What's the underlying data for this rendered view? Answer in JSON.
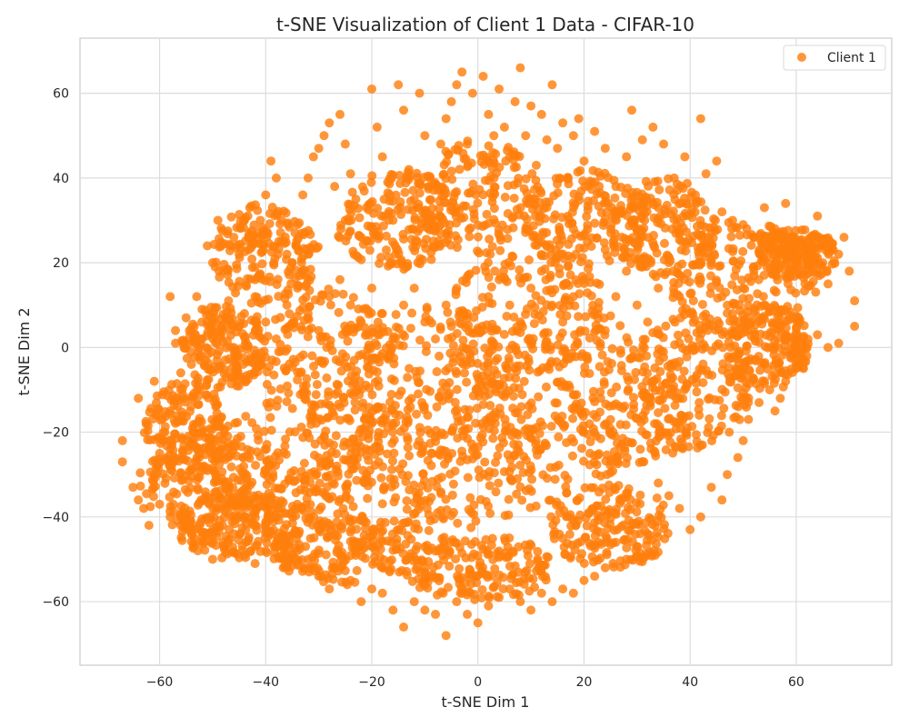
{
  "chart_data": {
    "type": "scatter",
    "title": "t-SNE Visualization of Client 1 Data - CIFAR-10",
    "xlabel": "t-SNE Dim 1",
    "ylabel": "t-SNE Dim 2",
    "xlim": [
      -75,
      78
    ],
    "ylim": [
      -75,
      73
    ],
    "xticks": [
      -60,
      -40,
      -20,
      0,
      20,
      40,
      60
    ],
    "yticks": [
      -60,
      -40,
      -20,
      0,
      20,
      40,
      60
    ],
    "grid": true,
    "legend_position": "top-right",
    "series": [
      {
        "name": "Client 1",
        "color": "#ff7f0e",
        "points": [
          [
            -67,
            -22
          ],
          [
            -67,
            -27
          ],
          [
            -65,
            -33
          ],
          [
            -64,
            -36
          ],
          [
            -63,
            -38
          ],
          [
            -62,
            -42
          ],
          [
            -64,
            -12
          ],
          [
            -61,
            -8
          ],
          [
            -58,
            12
          ],
          [
            -57,
            4
          ],
          [
            -57,
            1
          ],
          [
            -56,
            -6
          ],
          [
            -55,
            7
          ],
          [
            -53,
            12
          ],
          [
            -52,
            9
          ],
          [
            -51,
            24
          ],
          [
            -50,
            20
          ],
          [
            -49,
            30
          ],
          [
            -48,
            18
          ],
          [
            -47,
            11
          ],
          [
            -46,
            26
          ],
          [
            -45,
            22
          ],
          [
            -44,
            30
          ],
          [
            -43,
            33
          ],
          [
            -42,
            16
          ],
          [
            -41,
            30
          ],
          [
            -40,
            36
          ],
          [
            -39,
            44
          ],
          [
            -38,
            40
          ],
          [
            -37,
            30
          ],
          [
            -36,
            22
          ],
          [
            -35,
            20
          ],
          [
            -34,
            29
          ],
          [
            -33,
            36
          ],
          [
            -32,
            40
          ],
          [
            -31,
            45
          ],
          [
            -30,
            47
          ],
          [
            -29,
            50
          ],
          [
            -28,
            53
          ],
          [
            -27,
            38
          ],
          [
            -26,
            55
          ],
          [
            -25,
            48
          ],
          [
            -24,
            41
          ],
          [
            -23,
            35
          ],
          [
            -22,
            26
          ],
          [
            -21,
            33
          ],
          [
            -20,
            61
          ],
          [
            -19,
            52
          ],
          [
            -18,
            45
          ],
          [
            -17,
            39
          ],
          [
            -16,
            30
          ],
          [
            -15,
            62
          ],
          [
            -14,
            56
          ],
          [
            -13,
            42
          ],
          [
            -12,
            35
          ],
          [
            -11,
            60
          ],
          [
            -10,
            50
          ],
          [
            -9,
            40
          ],
          [
            -8,
            30
          ],
          [
            -7,
            48
          ],
          [
            -6,
            54
          ],
          [
            -5,
            58
          ],
          [
            -4,
            62
          ],
          [
            -3,
            65
          ],
          [
            -2,
            48
          ],
          [
            -1,
            60
          ],
          [
            1,
            64
          ],
          [
            2,
            55
          ],
          [
            3,
            50
          ],
          [
            4,
            61
          ],
          [
            5,
            52
          ],
          [
            6,
            45
          ],
          [
            7,
            58
          ],
          [
            8,
            66
          ],
          [
            9,
            50
          ],
          [
            10,
            57
          ],
          [
            11,
            43
          ],
          [
            12,
            55
          ],
          [
            13,
            49
          ],
          [
            14,
            62
          ],
          [
            15,
            47
          ],
          [
            16,
            53
          ],
          [
            17,
            40
          ],
          [
            18,
            50
          ],
          [
            19,
            54
          ],
          [
            20,
            44
          ],
          [
            22,
            51
          ],
          [
            24,
            47
          ],
          [
            26,
            38
          ],
          [
            28,
            45
          ],
          [
            29,
            56
          ],
          [
            31,
            49
          ],
          [
            33,
            52
          ],
          [
            35,
            48
          ],
          [
            37,
            40
          ],
          [
            39,
            45
          ],
          [
            41,
            36
          ],
          [
            42,
            54
          ],
          [
            43,
            41
          ],
          [
            44,
            27
          ],
          [
            45,
            44
          ],
          [
            46,
            32
          ],
          [
            48,
            30
          ],
          [
            50,
            29
          ],
          [
            52,
            26
          ],
          [
            54,
            33
          ],
          [
            56,
            28
          ],
          [
            57,
            22
          ],
          [
            58,
            34
          ],
          [
            60,
            25
          ],
          [
            62,
            23
          ],
          [
            64,
            31
          ],
          [
            65,
            20
          ],
          [
            66,
            15
          ],
          [
            67,
            23
          ],
          [
            68,
            22
          ],
          [
            69,
            26
          ],
          [
            70,
            18
          ],
          [
            71,
            11
          ],
          [
            71,
            5
          ],
          [
            68,
            1
          ],
          [
            66,
            0
          ],
          [
            64,
            3
          ],
          [
            62,
            -2
          ],
          [
            60,
            -5
          ],
          [
            58,
            -8
          ],
          [
            57,
            -12
          ],
          [
            56,
            -15
          ],
          [
            55,
            -10
          ],
          [
            53,
            -13
          ],
          [
            51,
            -17
          ],
          [
            50,
            -22
          ],
          [
            49,
            -26
          ],
          [
            47,
            -30
          ],
          [
            46,
            -36
          ],
          [
            44,
            -33
          ],
          [
            42,
            -40
          ],
          [
            40,
            -43
          ],
          [
            38,
            -38
          ],
          [
            36,
            -35
          ],
          [
            34,
            -32
          ],
          [
            32,
            -44
          ],
          [
            30,
            -47
          ],
          [
            28,
            -50
          ],
          [
            26,
            -46
          ],
          [
            24,
            -52
          ],
          [
            22,
            -54
          ],
          [
            20,
            -55
          ],
          [
            18,
            -58
          ],
          [
            16,
            -57
          ],
          [
            14,
            -60
          ],
          [
            12,
            -58
          ],
          [
            10,
            -62
          ],
          [
            8,
            -60
          ],
          [
            6,
            -57
          ],
          [
            4,
            -59
          ],
          [
            2,
            -61
          ],
          [
            0,
            -65
          ],
          [
            -2,
            -63
          ],
          [
            -4,
            -60
          ],
          [
            -6,
            -68
          ],
          [
            -8,
            -63
          ],
          [
            -10,
            -62
          ],
          [
            -12,
            -60
          ],
          [
            -14,
            -66
          ],
          [
            -16,
            -62
          ],
          [
            -18,
            -58
          ],
          [
            -20,
            -57
          ],
          [
            -22,
            -60
          ],
          [
            -24,
            -55
          ],
          [
            -26,
            -52
          ],
          [
            -28,
            -57
          ],
          [
            -30,
            -54
          ],
          [
            -32,
            -50
          ],
          [
            -34,
            -48
          ],
          [
            -36,
            -52
          ],
          [
            -38,
            -46
          ],
          [
            -40,
            -48
          ],
          [
            -42,
            -51
          ],
          [
            -44,
            -49
          ],
          [
            -46,
            -44
          ],
          [
            -48,
            -46
          ],
          [
            -50,
            -50
          ],
          [
            -52,
            -45
          ],
          [
            -54,
            -44
          ],
          [
            -56,
            -42
          ],
          [
            -58,
            -40
          ],
          [
            -60,
            -37
          ],
          [
            -61,
            -30
          ],
          [
            -60,
            -25
          ],
          [
            -59,
            -20
          ],
          [
            -58,
            -15
          ],
          [
            -56,
            -10
          ],
          [
            -54,
            -4
          ],
          [
            -52,
            2
          ],
          [
            -50,
            6
          ],
          [
            -48,
            4
          ],
          [
            -46,
            0
          ],
          [
            -44,
            8
          ],
          [
            -42,
            12
          ],
          [
            -40,
            6
          ],
          [
            -38,
            2
          ],
          [
            -36,
            10
          ],
          [
            -34,
            14
          ],
          [
            -32,
            8
          ],
          [
            -30,
            4
          ],
          [
            -28,
            12
          ],
          [
            -26,
            16
          ],
          [
            -24,
            10
          ],
          [
            -22,
            6
          ],
          [
            -20,
            14
          ],
          [
            -18,
            8
          ],
          [
            -16,
            2
          ],
          [
            -14,
            10
          ],
          [
            -12,
            14
          ],
          [
            -10,
            6
          ],
          [
            -8,
            2
          ],
          [
            -6,
            10
          ],
          [
            -4,
            14
          ],
          [
            -2,
            8
          ],
          [
            0,
            4
          ],
          [
            2,
            12
          ],
          [
            4,
            16
          ],
          [
            6,
            10
          ],
          [
            8,
            6
          ],
          [
            10,
            14
          ],
          [
            12,
            18
          ],
          [
            14,
            10
          ],
          [
            16,
            6
          ],
          [
            18,
            12
          ],
          [
            20,
            16
          ],
          [
            22,
            8
          ],
          [
            24,
            4
          ],
          [
            26,
            12
          ],
          [
            28,
            18
          ],
          [
            30,
            10
          ],
          [
            32,
            6
          ],
          [
            34,
            14
          ],
          [
            36,
            20
          ],
          [
            38,
            12
          ],
          [
            40,
            8
          ],
          [
            42,
            16
          ],
          [
            44,
            20
          ],
          [
            46,
            12
          ],
          [
            48,
            8
          ],
          [
            50,
            14
          ],
          [
            52,
            18
          ],
          [
            54,
            10
          ]
        ]
      }
    ]
  }
}
